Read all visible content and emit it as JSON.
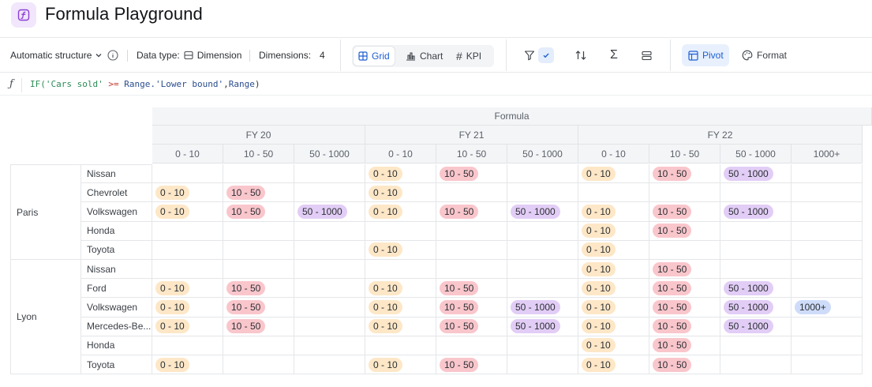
{
  "header": {
    "title": "Formula Playground",
    "icon": "formula-icon"
  },
  "toolbar": {
    "structure": "Automatic structure",
    "data_type_label": "Data type:",
    "data_type_value": "Dimension",
    "dimensions_label": "Dimensions:",
    "dimensions_value": "4",
    "views": {
      "grid": "Grid",
      "chart": "Chart",
      "kpi": "KPI"
    },
    "active_view": "Grid",
    "pivot": "Pivot",
    "format": "Format",
    "accent_color": "#1d5fd1"
  },
  "formula": {
    "tokens": [
      {
        "t": "IF(",
        "k": "kw"
      },
      {
        "t": "'Cars sold'",
        "k": "str"
      },
      {
        "t": " >= ",
        "k": "op"
      },
      {
        "t": "Range.'Lower bound'",
        "k": "id"
      },
      {
        "t": ",",
        "k": "pl"
      },
      {
        "t": "Range",
        "k": "id"
      },
      {
        "t": ")",
        "k": "pl"
      }
    ]
  },
  "table": {
    "measure": "Formula",
    "years": [
      "FY 20",
      "FY 21",
      "FY 22"
    ],
    "columns": [
      {
        "year": 0,
        "range": "0 - 10"
      },
      {
        "year": 0,
        "range": "10 - 50"
      },
      {
        "year": 0,
        "range": "50 - 1000"
      },
      {
        "year": 1,
        "range": "0 - 10"
      },
      {
        "year": 1,
        "range": "10 - 50"
      },
      {
        "year": 1,
        "range": "50 - 1000"
      },
      {
        "year": 2,
        "range": "0 - 10"
      },
      {
        "year": 2,
        "range": "10 - 50"
      },
      {
        "year": 2,
        "range": "50 - 1000"
      },
      {
        "year": 2,
        "range": "1000+"
      }
    ],
    "pill_colors": {
      "0 - 10": "#fde7c7",
      "10 - 50": "#f9c6cc",
      "50 - 1000": "#e2cdf6",
      "1000+": "#cfdcf9"
    },
    "groups": [
      {
        "city": "Paris",
        "rows": [
          {
            "brand": "Nissan",
            "cells": [
              "",
              "",
              "",
              "0 - 10",
              "10 - 50",
              "",
              "0 - 10",
              "10 - 50",
              "50 - 1000",
              ""
            ]
          },
          {
            "brand": "Chevrolet",
            "cells": [
              "0 - 10",
              "10 - 50",
              "",
              "0 - 10",
              "",
              "",
              "",
              "",
              "",
              ""
            ]
          },
          {
            "brand": "Volkswagen",
            "cells": [
              "0 - 10",
              "10 - 50",
              "50 - 1000",
              "0 - 10",
              "10 - 50",
              "50 - 1000",
              "0 - 10",
              "10 - 50",
              "50 - 1000",
              ""
            ]
          },
          {
            "brand": "Honda",
            "cells": [
              "",
              "",
              "",
              "",
              "",
              "",
              "0 - 10",
              "10 - 50",
              "",
              ""
            ]
          },
          {
            "brand": "Toyota",
            "cells": [
              "",
              "",
              "",
              "0 - 10",
              "",
              "",
              "0 - 10",
              "",
              "",
              ""
            ]
          }
        ]
      },
      {
        "city": "Lyon",
        "rows": [
          {
            "brand": "Nissan",
            "cells": [
              "",
              "",
              "",
              "",
              "",
              "",
              "0 - 10",
              "10 - 50",
              "",
              ""
            ]
          },
          {
            "brand": "Ford",
            "cells": [
              "0 - 10",
              "10 - 50",
              "",
              "0 - 10",
              "10 - 50",
              "",
              "0 - 10",
              "10 - 50",
              "50 - 1000",
              ""
            ]
          },
          {
            "brand": "Volkswagen",
            "cells": [
              "0 - 10",
              "10 - 50",
              "",
              "0 - 10",
              "10 - 50",
              "50 - 1000",
              "0 - 10",
              "10 - 50",
              "50 - 1000",
              "1000+"
            ]
          },
          {
            "brand": "Mercedes-Be...",
            "cells": [
              "0 - 10",
              "10 - 50",
              "",
              "0 - 10",
              "10 - 50",
              "50 - 1000",
              "0 - 10",
              "10 - 50",
              "50 - 1000",
              ""
            ]
          },
          {
            "brand": "Honda",
            "cells": [
              "",
              "",
              "",
              "",
              "",
              "",
              "0 - 10",
              "10 - 50",
              "",
              ""
            ]
          },
          {
            "brand": "Toyota",
            "cells": [
              "0 - 10",
              "",
              "",
              "0 - 10",
              "10 - 50",
              "",
              "0 - 10",
              "10 - 50",
              "",
              ""
            ]
          }
        ]
      }
    ]
  }
}
